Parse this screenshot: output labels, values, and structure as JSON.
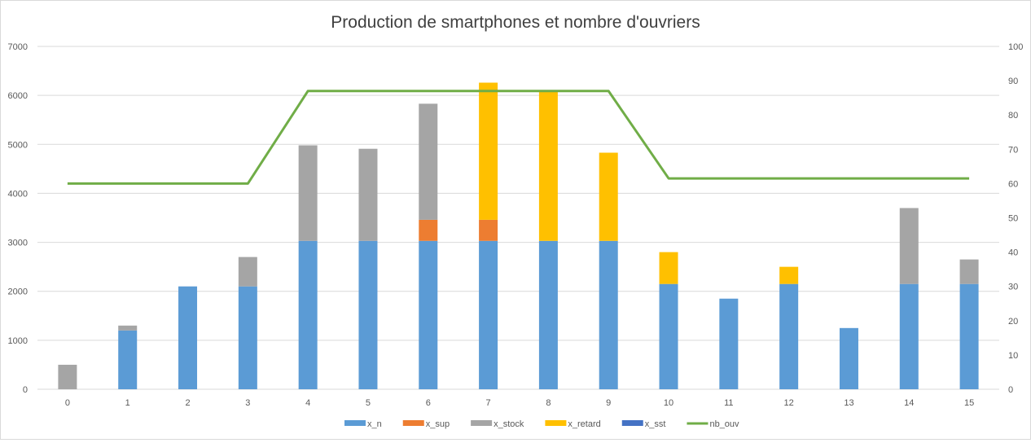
{
  "chart_data": {
    "type": "bar",
    "stacked": true,
    "title": "Production de smartphones et nombre d'ouvriers",
    "xlabel": "",
    "ylabel": "",
    "categories": [
      "0",
      "1",
      "2",
      "3",
      "4",
      "5",
      "6",
      "7",
      "8",
      "9",
      "10",
      "11",
      "12",
      "13",
      "14",
      "15"
    ],
    "ylim": [
      0,
      7000
    ],
    "yticks": [
      "0",
      "1000",
      "2000",
      "3000",
      "4000",
      "5000",
      "6000",
      "7000"
    ],
    "y2lim": [
      0,
      100
    ],
    "y2ticks": [
      "0",
      "10",
      "20",
      "30",
      "40",
      "50",
      "60",
      "70",
      "80",
      "90",
      "100"
    ],
    "gridlines": true,
    "legend_position": "bottom",
    "series": [
      {
        "name": "x_n",
        "color": "#5b9bd5",
        "values": [
          0,
          1200,
          2100,
          2100,
          3030,
          3030,
          3030,
          3030,
          3030,
          3030,
          2150,
          1850,
          2150,
          1250,
          2150,
          2150
        ]
      },
      {
        "name": "x_sup",
        "color": "#ed7d31",
        "values": [
          0,
          0,
          0,
          0,
          0,
          0,
          430,
          430,
          0,
          0,
          0,
          0,
          0,
          0,
          0,
          0
        ]
      },
      {
        "name": "x_stock",
        "color": "#a5a5a5",
        "values": [
          500,
          100,
          0,
          600,
          1950,
          1880,
          2370,
          0,
          0,
          0,
          0,
          0,
          0,
          0,
          1550,
          500
        ]
      },
      {
        "name": "x_retard",
        "color": "#ffc000",
        "values": [
          0,
          0,
          0,
          0,
          0,
          0,
          0,
          2800,
          3080,
          1800,
          650,
          0,
          350,
          0,
          0,
          0
        ]
      },
      {
        "name": "x_sst",
        "color": "#4472c4",
        "values": [
          0,
          0,
          0,
          0,
          0,
          0,
          0,
          0,
          0,
          0,
          0,
          0,
          0,
          0,
          0,
          0
        ]
      }
    ],
    "line_series": [
      {
        "name": "nb_ouv",
        "color": "#70ad47",
        "axis": "secondary",
        "values": [
          60,
          60,
          60,
          60,
          87,
          87,
          87,
          87,
          87,
          87,
          61.5,
          61.5,
          61.5,
          61.5,
          61.5,
          61.5
        ]
      }
    ]
  }
}
